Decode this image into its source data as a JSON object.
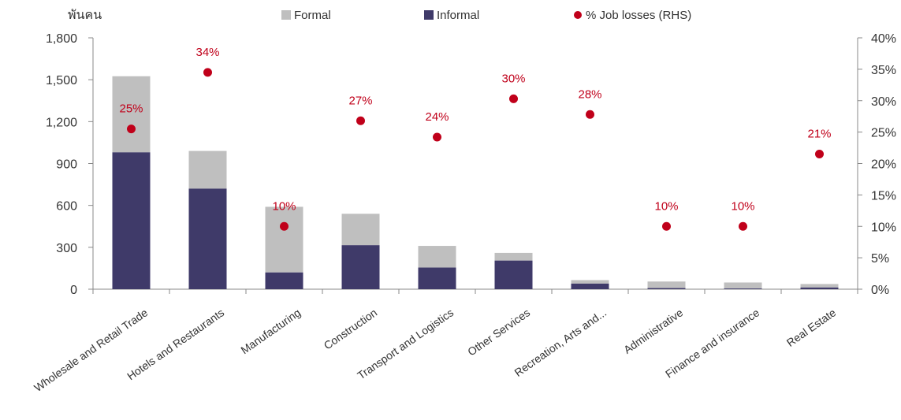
{
  "chart_data": {
    "type": "bar",
    "stacked": true,
    "categories": [
      "Wholesale and Retail Trade",
      "Hotels and Restaurants",
      "Manufacturing",
      "Construction",
      "Transport and Logistics",
      "Other Services",
      "Recreation, Arts and...",
      "Administrative",
      "Finance and insurance",
      "Real Estate"
    ],
    "ylabel": "พันคน",
    "ylim": [
      0,
      1800
    ],
    "yticks": [
      "0",
      "300",
      "600",
      "900",
      "1,200",
      "1,500",
      "1,800"
    ],
    "y2lim": [
      0,
      40
    ],
    "y2ticks": [
      "0%",
      "5%",
      "10%",
      "15%",
      "20%",
      "25%",
      "30%",
      "35%",
      "40%"
    ],
    "series": [
      {
        "name": "Informal",
        "type": "bar",
        "values": [
          980,
          720,
          120,
          315,
          155,
          205,
          40,
          8,
          5,
          12
        ]
      },
      {
        "name": "Formal",
        "type": "bar",
        "values": [
          545,
          270,
          470,
          225,
          155,
          55,
          25,
          47,
          43,
          25
        ]
      },
      {
        "name": "% Job losses (RHS)",
        "type": "scatter",
        "axis": "right",
        "values": [
          25.5,
          34.5,
          10,
          26.8,
          24.2,
          30.3,
          27.8,
          10,
          10,
          21.5
        ],
        "labels": [
          "25%",
          "34%",
          "10%",
          "27%",
          "24%",
          "30%",
          "28%",
          "10%",
          "10%",
          "21%"
        ]
      }
    ],
    "legend_placement": "top",
    "grid": false,
    "colors": {
      "formal": "#bfbfbf",
      "informal": "#3f3a69",
      "job_losses": "#c0001a"
    }
  }
}
